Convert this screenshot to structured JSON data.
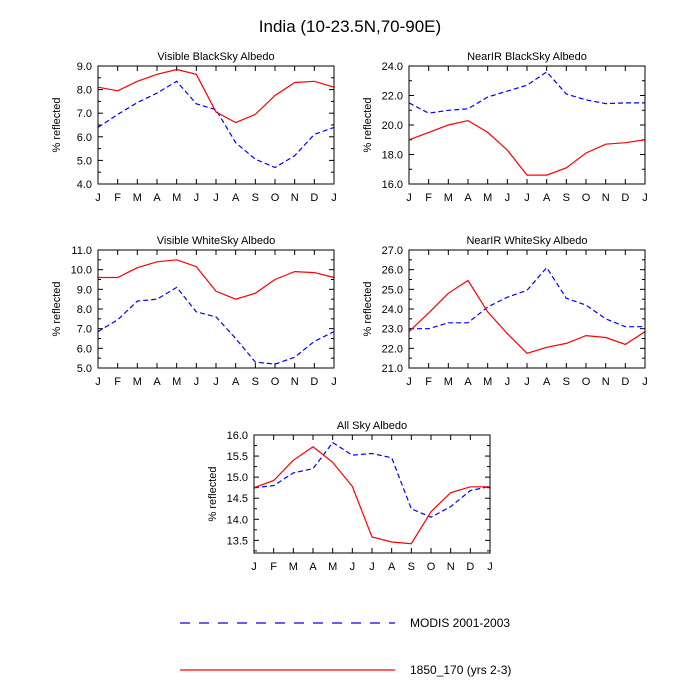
{
  "figure_title": "India (10-23.5N,70-90E)",
  "legend": {
    "items": [
      {
        "label": "MODIS 2001-2003",
        "color": "#0000ff",
        "style": "dashed"
      },
      {
        "label": "1850_170 (yrs 2-3)",
        "color": "#ff0000",
        "style": "solid"
      }
    ]
  },
  "chart_data": [
    {
      "type": "line",
      "title": "Visible BlackSky Albedo",
      "ylabel": "% reflected",
      "xlabel": "",
      "ylim": [
        4.0,
        9.0
      ],
      "yticks": [
        "4.0",
        "5.0",
        "6.0",
        "7.0",
        "8.0",
        "9.0"
      ],
      "categories": [
        "J",
        "F",
        "M",
        "A",
        "M",
        "J",
        "J",
        "A",
        "S",
        "O",
        "N",
        "D",
        "J"
      ],
      "series": [
        {
          "name": "MODIS 2001-2003",
          "color": "#0000ff",
          "style": "dashed",
          "values": [
            6.4,
            6.95,
            7.45,
            7.85,
            8.35,
            7.4,
            7.15,
            5.75,
            5.05,
            4.7,
            5.2,
            6.1,
            6.4
          ]
        },
        {
          "name": "1850_170 (yrs 2-3)",
          "color": "#ff0000",
          "style": "solid",
          "values": [
            8.1,
            7.95,
            8.35,
            8.65,
            8.85,
            8.65,
            7.05,
            6.6,
            6.95,
            7.75,
            8.3,
            8.35,
            8.1
          ]
        }
      ]
    },
    {
      "type": "line",
      "title": "NearIR BlackSky Albedo",
      "ylabel": "% reflected",
      "xlabel": "",
      "ylim": [
        16.0,
        24.0
      ],
      "yticks": [
        "16.0",
        "18.0",
        "20.0",
        "22.0",
        "24.0"
      ],
      "categories": [
        "J",
        "F",
        "M",
        "A",
        "M",
        "J",
        "J",
        "A",
        "S",
        "O",
        "N",
        "D",
        "J"
      ],
      "series": [
        {
          "name": "MODIS 2001-2003",
          "color": "#0000ff",
          "style": "dashed",
          "values": [
            21.5,
            20.8,
            21.0,
            21.1,
            21.9,
            22.3,
            22.7,
            23.6,
            22.1,
            21.7,
            21.45,
            21.5,
            21.5
          ]
        },
        {
          "name": "1850_170 (yrs 2-3)",
          "color": "#ff0000",
          "style": "solid",
          "values": [
            19.0,
            19.5,
            20.0,
            20.3,
            19.5,
            18.3,
            16.6,
            16.6,
            17.1,
            18.1,
            18.7,
            18.8,
            19.0
          ]
        }
      ]
    },
    {
      "type": "line",
      "title": "Visible WhiteSky Albedo",
      "ylabel": "% reflected",
      "xlabel": "",
      "ylim": [
        5.0,
        11.0
      ],
      "yticks": [
        "5.0",
        "6.0",
        "7.0",
        "8.0",
        "9.0",
        "10.0",
        "11.0"
      ],
      "categories": [
        "J",
        "F",
        "M",
        "A",
        "M",
        "J",
        "J",
        "A",
        "S",
        "O",
        "N",
        "D",
        "J"
      ],
      "series": [
        {
          "name": "MODIS 2001-2003",
          "color": "#0000ff",
          "style": "dashed",
          "values": [
            6.85,
            7.45,
            8.4,
            8.5,
            9.1,
            7.85,
            7.6,
            6.5,
            5.3,
            5.2,
            5.55,
            6.35,
            6.85
          ]
        },
        {
          "name": "1850_170 (yrs 2-3)",
          "color": "#ff0000",
          "style": "solid",
          "values": [
            9.6,
            9.6,
            10.1,
            10.4,
            10.5,
            10.15,
            8.9,
            8.5,
            8.8,
            9.5,
            9.9,
            9.85,
            9.6
          ]
        }
      ]
    },
    {
      "type": "line",
      "title": "NearIR WhiteSky Albedo",
      "ylabel": "% reflected",
      "xlabel": "",
      "ylim": [
        21.0,
        27.0
      ],
      "yticks": [
        "21.0",
        "22.0",
        "23.0",
        "24.0",
        "25.0",
        "26.0",
        "27.0"
      ],
      "categories": [
        "J",
        "F",
        "M",
        "A",
        "M",
        "J",
        "J",
        "A",
        "S",
        "O",
        "N",
        "D",
        "J"
      ],
      "series": [
        {
          "name": "MODIS 2001-2003",
          "color": "#0000ff",
          "style": "dashed",
          "values": [
            23.0,
            23.0,
            23.3,
            23.3,
            24.1,
            24.6,
            24.95,
            26.1,
            24.55,
            24.2,
            23.5,
            23.1,
            23.1
          ]
        },
        {
          "name": "1850_170 (yrs 2-3)",
          "color": "#ff0000",
          "style": "solid",
          "values": [
            22.85,
            23.8,
            24.8,
            25.45,
            23.85,
            22.75,
            21.75,
            22.05,
            22.25,
            22.65,
            22.55,
            22.2,
            22.85
          ]
        }
      ]
    },
    {
      "type": "line",
      "title": "All Sky Albedo",
      "ylabel": "% reflected",
      "xlabel": "",
      "ylim": [
        13.2,
        16.0
      ],
      "yticks": [
        "13.5",
        "14.0",
        "14.5",
        "15.0",
        "15.5",
        "16.0"
      ],
      "categories": [
        "J",
        "F",
        "M",
        "A",
        "M",
        "J",
        "J",
        "A",
        "S",
        "O",
        "N",
        "D",
        "J"
      ],
      "series": [
        {
          "name": "MODIS 2001-2003",
          "color": "#0000ff",
          "style": "dashed",
          "values": [
            14.75,
            14.8,
            15.1,
            15.2,
            15.82,
            15.52,
            15.56,
            15.46,
            14.25,
            14.05,
            14.3,
            14.68,
            14.78
          ]
        },
        {
          "name": "1850_170 (yrs 2-3)",
          "color": "#ff0000",
          "style": "solid",
          "values": [
            14.75,
            14.92,
            15.4,
            15.72,
            15.35,
            14.78,
            13.58,
            13.46,
            13.42,
            14.18,
            14.63,
            14.77,
            14.77
          ]
        }
      ]
    }
  ]
}
